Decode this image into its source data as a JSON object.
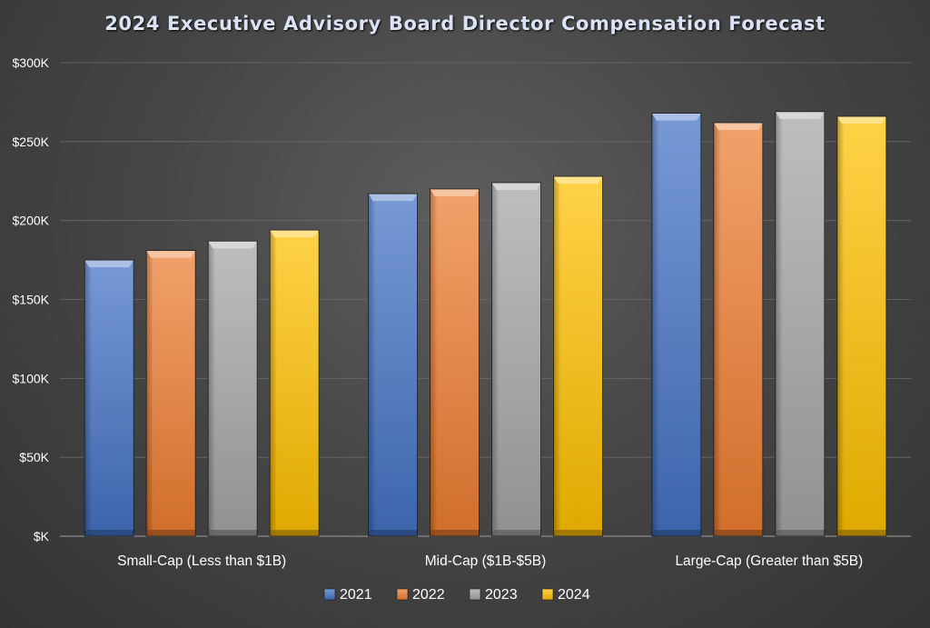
{
  "chart_data": {
    "type": "bar",
    "title": "2024 Executive Advisory Board Director Compensation Forecast",
    "xlabel": "",
    "ylabel": "",
    "categories": [
      "Small-Cap (Less than $1B)",
      "Mid-Cap ($1B-$5B)",
      "Large-Cap (Greater than $5B)"
    ],
    "series": [
      {
        "name": "2021",
        "values": [
          175000,
          217000,
          268000
        ],
        "color": "#4472c4"
      },
      {
        "name": "2022",
        "values": [
          181000,
          220000,
          262000
        ],
        "color": "#ed7d31"
      },
      {
        "name": "2023",
        "values": [
          187000,
          224000,
          269000
        ],
        "color": "#a5a5a5"
      },
      {
        "name": "2024",
        "values": [
          194000,
          228000,
          266000
        ],
        "color": "#ffc000"
      }
    ],
    "ylim": [
      0,
      300000
    ],
    "yticks": [
      0,
      50000,
      100000,
      150000,
      200000,
      250000,
      300000
    ],
    "ytick_labels": [
      "$K",
      "$50K",
      "$100K",
      "$150K",
      "$200K",
      "$250K",
      "$300K"
    ],
    "grid": true,
    "legend": "bottom-center",
    "background": "#454545"
  }
}
